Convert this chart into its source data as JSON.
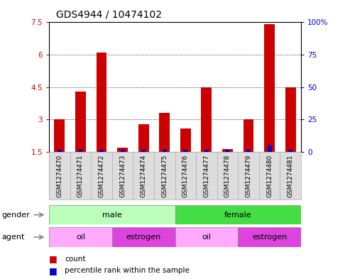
{
  "title": "GDS4944 / 10474102",
  "samples": [
    "GSM1274470",
    "GSM1274471",
    "GSM1274472",
    "GSM1274473",
    "GSM1274474",
    "GSM1274475",
    "GSM1274476",
    "GSM1274477",
    "GSM1274478",
    "GSM1274479",
    "GSM1274480",
    "GSM1274481"
  ],
  "counts": [
    3.0,
    4.3,
    6.1,
    1.7,
    2.8,
    3.3,
    2.6,
    4.5,
    1.65,
    3.0,
    7.4,
    4.5
  ],
  "percentile_ranks": [
    2,
    2,
    2,
    2,
    2,
    2,
    2,
    2,
    2,
    2,
    5,
    2
  ],
  "ylim_left": [
    1.5,
    7.5
  ],
  "ylim_right": [
    0,
    100
  ],
  "yticks_left": [
    1.5,
    3.0,
    4.5,
    6.0,
    7.5
  ],
  "yticks_right": [
    0,
    25,
    50,
    75,
    100
  ],
  "ytick_labels_left": [
    "1.5",
    "3",
    "4.5",
    "6",
    "7.5"
  ],
  "ytick_labels_right": [
    "0",
    "25",
    "50",
    "75",
    "100%"
  ],
  "bar_color": "#cc0000",
  "percentile_color": "#0000cc",
  "bar_width": 0.5,
  "baseline": 1.5,
  "gender_groups": [
    {
      "label": "male",
      "start": 0,
      "end": 5,
      "color": "#bbffbb"
    },
    {
      "label": "female",
      "start": 6,
      "end": 11,
      "color": "#44dd44"
    }
  ],
  "agent_groups": [
    {
      "label": "oil",
      "start": 0,
      "end": 2,
      "color": "#ffaaff"
    },
    {
      "label": "estrogen",
      "start": 3,
      "end": 5,
      "color": "#dd44dd"
    },
    {
      "label": "oil",
      "start": 6,
      "end": 8,
      "color": "#ffaaff"
    },
    {
      "label": "estrogen",
      "start": 9,
      "end": 11,
      "color": "#dd44dd"
    }
  ],
  "background_color": "#ffffff",
  "plot_bg_color": "#ffffff",
  "grid_color": "#000000",
  "label_color_left": "#cc0000",
  "label_color_right": "#0000cc",
  "title_color": "#000000",
  "legend_count_color": "#cc0000",
  "legend_percentile_color": "#0000cc",
  "sample_bg_color": "#dddddd"
}
